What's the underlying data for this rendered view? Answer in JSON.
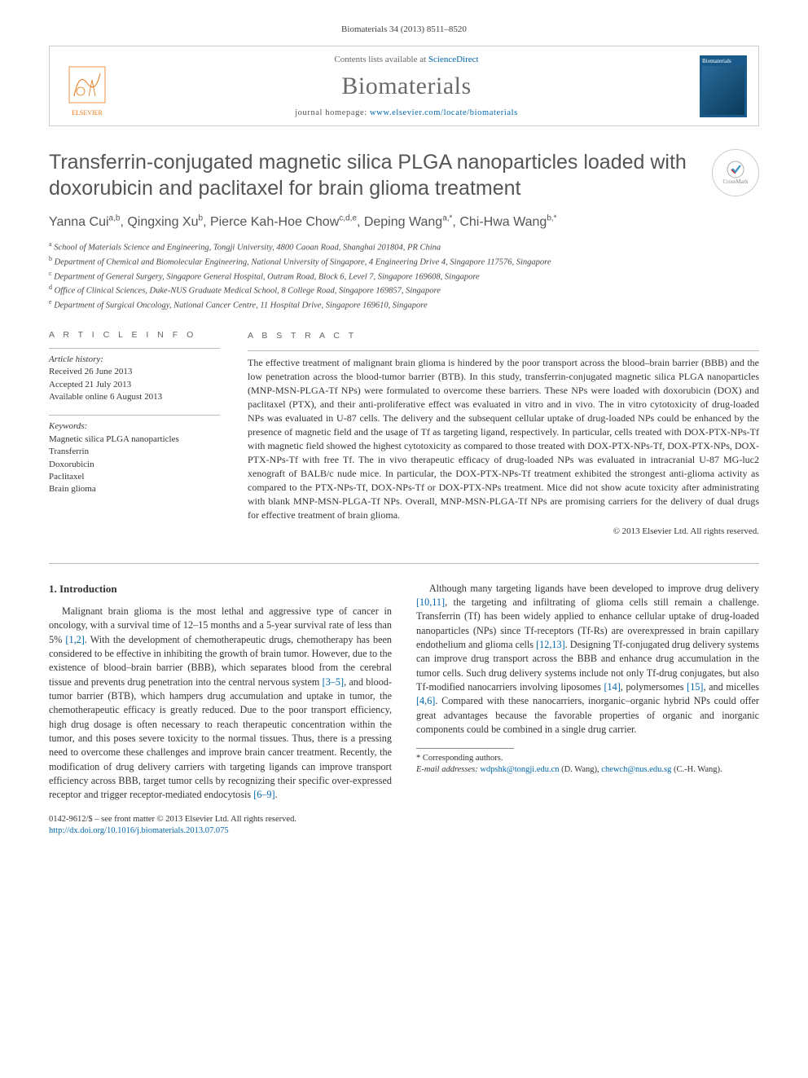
{
  "citation": "Biomaterials 34 (2013) 8511–8520",
  "header": {
    "contents_prefix": "Contents lists available at ",
    "contents_link": "ScienceDirect",
    "journal": "Biomaterials",
    "homepage_prefix": "journal homepage: ",
    "homepage_url": "www.elsevier.com/locate/biomaterials",
    "publisher_name": "ELSEVIER",
    "cover_label": "Biomaterials"
  },
  "title": "Transferrin-conjugated magnetic silica PLGA nanoparticles loaded with doxorubicin and paclitaxel for brain glioma treatment",
  "crossmark_label": "CrossMark",
  "authors_html": "Yanna Cui<sup>a,b</sup>, Qingxing Xu<sup>b</sup>, Pierce Kah-Hoe Chow<sup>c,d,e</sup>, Deping Wang<sup>a,*</sup>, Chi-Hwa Wang<sup>b,*</sup>",
  "affiliations": [
    "a School of Materials Science and Engineering, Tongji University, 4800 Caoan Road, Shanghai 201804, PR China",
    "b Department of Chemical and Biomolecular Engineering, National University of Singapore, 4 Engineering Drive 4, Singapore 117576, Singapore",
    "c Department of General Surgery, Singapore General Hospital, Outram Road, Block 6, Level 7, Singapore 169608, Singapore",
    "d Office of Clinical Sciences, Duke-NUS Graduate Medical School, 8 College Road, Singapore 169857, Singapore",
    "e Department of Surgical Oncology, National Cancer Centre, 11 Hospital Drive, Singapore 169610, Singapore"
  ],
  "info": {
    "heading": "A R T I C L E   I N F O",
    "history_label": "Article history:",
    "received": "Received 26 June 2013",
    "accepted": "Accepted 21 July 2013",
    "online": "Available online 6 August 2013",
    "keywords_label": "Keywords:",
    "keywords": [
      "Magnetic silica PLGA nanoparticles",
      "Transferrin",
      "Doxorubicin",
      "Paclitaxel",
      "Brain glioma"
    ]
  },
  "abstract": {
    "heading": "A B S T R A C T",
    "text": "The effective treatment of malignant brain glioma is hindered by the poor transport across the blood–brain barrier (BBB) and the low penetration across the blood-tumor barrier (BTB). In this study, transferrin-conjugated magnetic silica PLGA nanoparticles (MNP-MSN-PLGA-Tf NPs) were formulated to overcome these barriers. These NPs were loaded with doxorubicin (DOX) and paclitaxel (PTX), and their anti-proliferative effect was evaluated in vitro and in vivo. The in vitro cytotoxicity of drug-loaded NPs was evaluated in U-87 cells. The delivery and the subsequent cellular uptake of drug-loaded NPs could be enhanced by the presence of magnetic field and the usage of Tf as targeting ligand, respectively. In particular, cells treated with DOX-PTX-NPs-Tf with magnetic field showed the highest cytotoxicity as compared to those treated with DOX-PTX-NPs-Tf, DOX-PTX-NPs, DOX-PTX-NPs-Tf with free Tf. The in vivo therapeutic efficacy of drug-loaded NPs was evaluated in intracranial U-87 MG-luc2 xenograft of BALB/c nude mice. In particular, the DOX-PTX-NPs-Tf treatment exhibited the strongest anti-glioma activity as compared to the PTX-NPs-Tf, DOX-NPs-Tf or DOX-PTX-NPs treatment. Mice did not show acute toxicity after administrating with blank MNP-MSN-PLGA-Tf NPs. Overall, MNP-MSN-PLGA-Tf NPs are promising carriers for the delivery of dual drugs for effective treatment of brain glioma.",
    "copyright": "© 2013 Elsevier Ltd. All rights reserved."
  },
  "body": {
    "section_heading": "1.  Introduction",
    "para1_a": "Malignant brain glioma is the most lethal and aggressive type of cancer in oncology, with a survival time of 12–15 months and a 5-year survival rate of less than 5% ",
    "ref1": "[1,2]",
    "para1_b": ". With the development of chemotherapeutic drugs, chemotherapy has been considered to be effective in inhibiting the growth of brain tumor. However, due to the existence of blood–brain barrier (BBB), which separates blood from the cerebral tissue and prevents drug penetration into the central nervous system ",
    "ref2": "[3–5]",
    "para1_c": ", and blood-tumor barrier (BTB), which hampers drug accumulation and uptake in tumor, the chemotherapeutic efficacy is greatly reduced. Due to the poor transport efficiency, high drug dosage is often necessary to reach therapeutic concentration within the tumor, and this poses severe toxicity to the normal tissues. Thus, there is a pressing need to overcome these challenges and improve brain cancer treatment. Recently, the modification of drug delivery carriers with targeting ligands can improve transport efficiency across BBB, target tumor cells by recognizing their specific over-expressed receptor and trigger receptor-mediated endocytosis ",
    "ref3": "[6–9]",
    "para1_d": ".",
    "para2_a": "Although many targeting ligands have been developed to improve drug delivery ",
    "ref4": "[10,11]",
    "para2_b": ", the targeting and infiltrating of glioma cells still remain a challenge. Transferrin (Tf) has been widely applied to enhance cellular uptake of drug-loaded nanoparticles (NPs) since Tf-receptors (Tf-Rs) are overexpressed in brain capillary endothelium and glioma cells ",
    "ref5": "[12,13]",
    "para2_c": ". Designing Tf-conjugated drug delivery systems can improve drug transport across the BBB and enhance drug accumulation in the tumor cells. Such drug delivery systems include not only Tf-drug conjugates, but also Tf-modified nanocarriers involving liposomes ",
    "ref6": "[14]",
    "para2_d": ", polymersomes ",
    "ref7": "[15]",
    "para2_e": ", and micelles ",
    "ref8": "[4,6]",
    "para2_f": ". Compared with these nanocarriers, inorganic–organic hybrid NPs could offer great advantages because the favorable properties of organic and inorganic components could be combined in a single drug carrier."
  },
  "footnotes": {
    "corr": "* Corresponding authors.",
    "email_label": "E-mail addresses:",
    "email1": "wdpshk@tongji.edu.cn",
    "name1": "(D. Wang),",
    "email2": "chewch@nus.edu.sg",
    "name2": "(C.-H. Wang)."
  },
  "bottom": {
    "issn": "0142-9612/$ – see front matter © 2013 Elsevier Ltd. All rights reserved.",
    "doi_url": "http://dx.doi.org/10.1016/j.biomaterials.2013.07.075"
  },
  "colors": {
    "link": "#0066aa",
    "logo_orange": "#e67817",
    "cover_bg": "#1a5a8a",
    "text_gray": "#555555",
    "rule": "#bbbbbb"
  }
}
